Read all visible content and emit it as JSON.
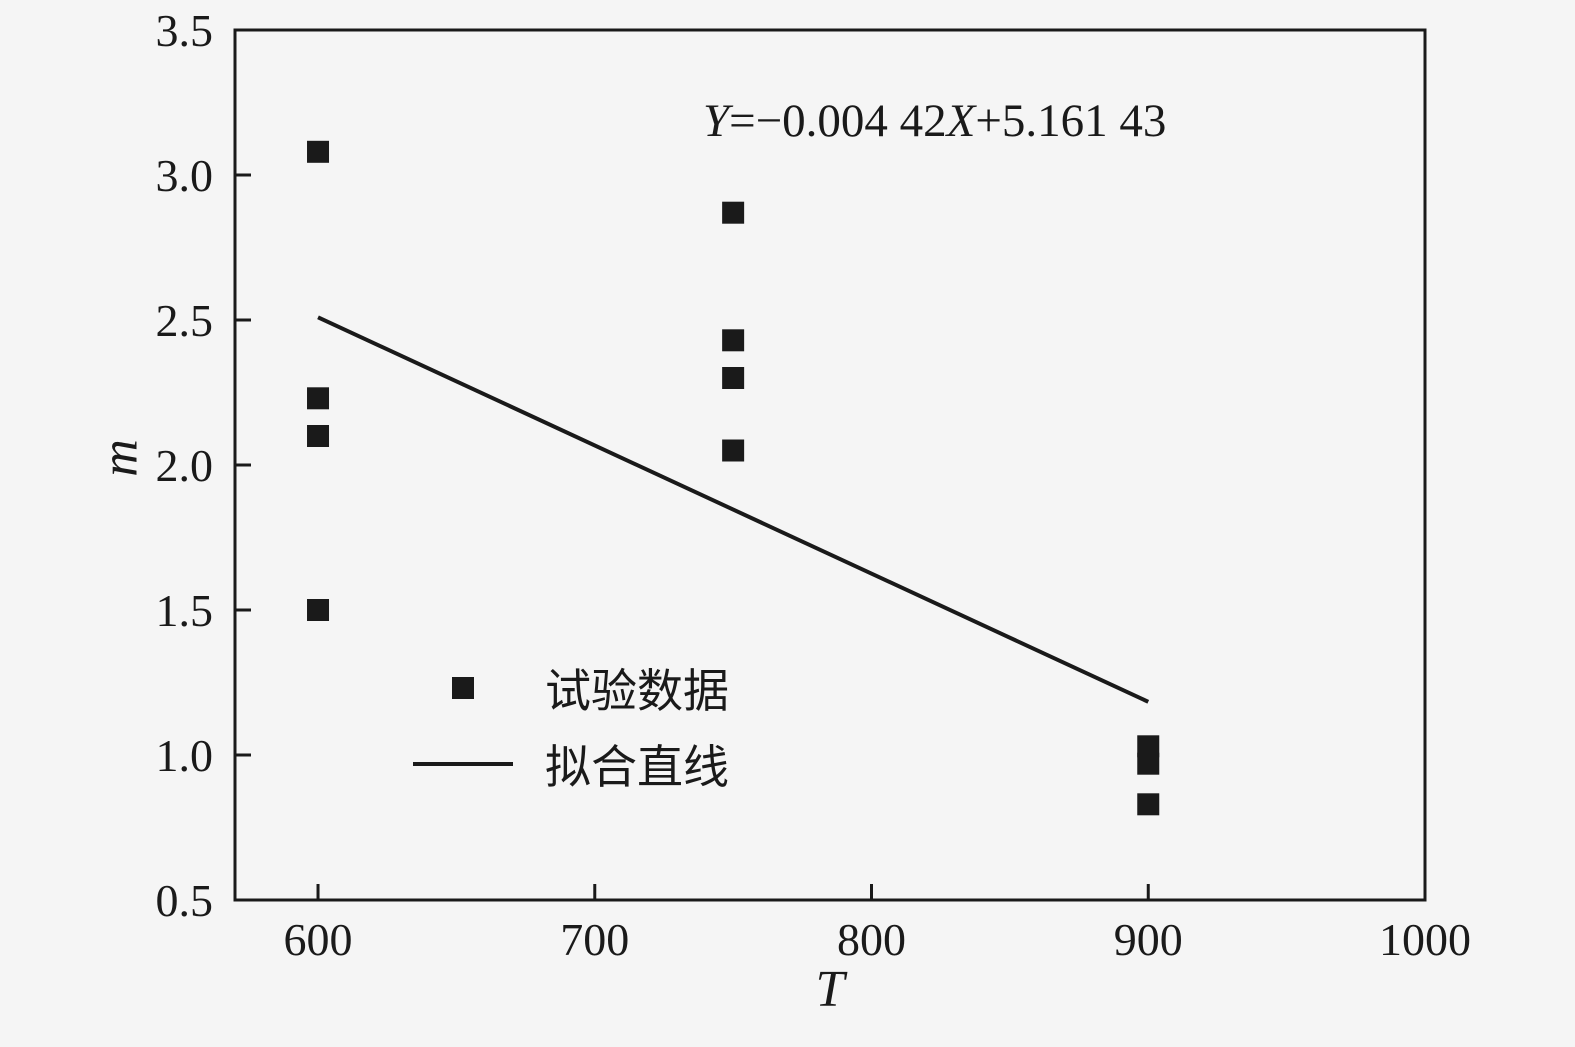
{
  "chart_data": {
    "type": "scatter",
    "title": "",
    "xlabel": "T",
    "ylabel": "m",
    "xlim": [
      570,
      1000
    ],
    "ylim": [
      0.5,
      3.5
    ],
    "xticks": [
      600,
      700,
      800,
      900,
      1000
    ],
    "yticks": [
      0.5,
      1.0,
      1.5,
      2.0,
      2.5,
      3.0,
      3.5
    ],
    "grid": false,
    "annotation": "Y=−0.004 42X+5.161 43",
    "annotation_parts": {
      "y": "Y",
      "mid": "=−0.004 42",
      "x": "X",
      "tail": "+5.161 43"
    },
    "series": [
      {
        "name": "试验数据",
        "type": "scatter",
        "marker": "square",
        "color": "#1a1a1a",
        "points": [
          [
            600,
            3.08
          ],
          [
            600,
            2.23
          ],
          [
            600,
            2.1
          ],
          [
            600,
            1.5
          ],
          [
            750,
            2.87
          ],
          [
            750,
            2.43
          ],
          [
            750,
            2.3
          ],
          [
            750,
            2.05
          ],
          [
            900,
            1.03
          ],
          [
            900,
            0.97
          ],
          [
            900,
            0.83
          ]
        ]
      },
      {
        "name": "拟合直线",
        "type": "line",
        "color": "#1a1a1a",
        "slope": -0.00442,
        "intercept": 5.16143,
        "x_range": [
          600,
          900
        ]
      }
    ],
    "legend": {
      "position": "inside-lower-left",
      "entries": [
        "试验数据",
        "拟合直线"
      ]
    }
  },
  "colors": {
    "background": "#f5f5f5",
    "foreground": "#1a1a1a"
  }
}
